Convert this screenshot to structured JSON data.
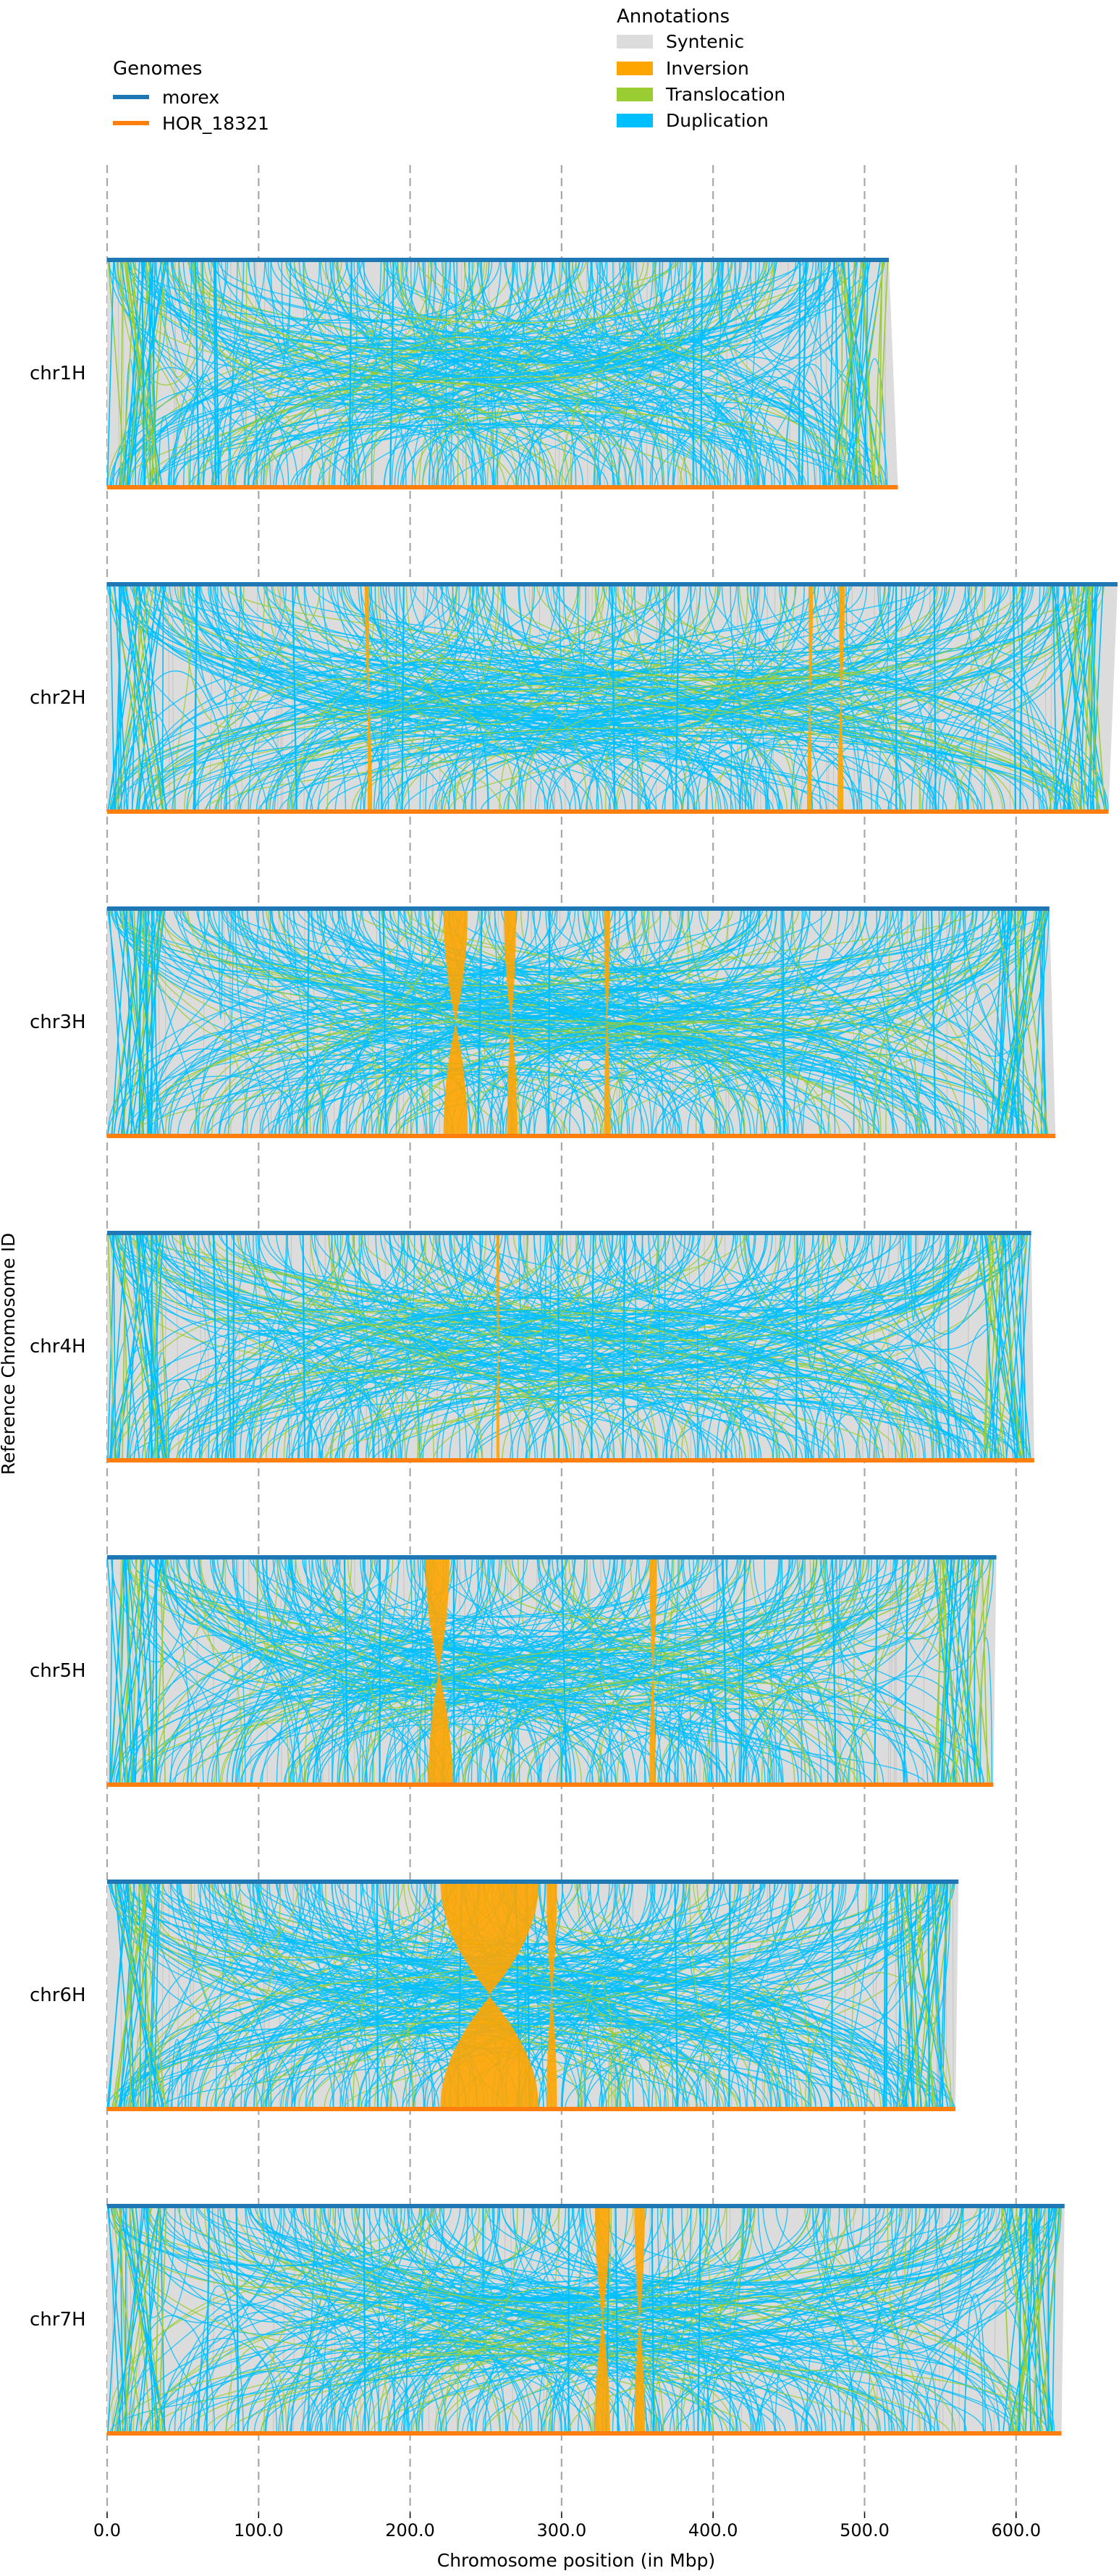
{
  "legend_genomes": {
    "title": "Genomes",
    "items": [
      {
        "label": "morex",
        "color": "#1f77b4"
      },
      {
        "label": "HOR_18321",
        "color": "#ff7f0e"
      }
    ]
  },
  "legend_annotations": {
    "title": "Annotations",
    "items": [
      {
        "label": "Syntenic",
        "color": "#dcdcdc"
      },
      {
        "label": "Inversion",
        "color": "#ffa500"
      },
      {
        "label": "Translocation",
        "color": "#9acd32"
      },
      {
        "label": "Duplication",
        "color": "#00bfff"
      }
    ]
  },
  "chart_data": {
    "type": "synteny",
    "xlabel": "Chromosome position (in Mbp)",
    "ylabel": "Reference Chromosome ID",
    "xlim": [
      0,
      670
    ],
    "xticks": [
      0,
      100,
      200,
      300,
      400,
      500,
      600
    ],
    "xtick_labels": [
      "0.0",
      "100.0",
      "200.0",
      "300.0",
      "400.0",
      "500.0",
      "600.0"
    ],
    "grid": "vertical dashed",
    "chromosomes": [
      {
        "id": "chr1H",
        "morex_length": 516,
        "hor_length": 522,
        "inversions": []
      },
      {
        "id": "chr2H",
        "morex_length": 667,
        "hor_length": 661,
        "inversions": [
          {
            "ref": [
              170,
              173
            ],
            "qry": [
              172,
              175
            ]
          },
          {
            "ref": [
              463,
              466
            ],
            "qry": [
              462,
              465
            ]
          },
          {
            "ref": [
              483,
              487
            ],
            "qry": [
              482,
              486
            ]
          }
        ]
      },
      {
        "id": "chr3H",
        "morex_length": 622,
        "hor_length": 626,
        "inversions": [
          {
            "ref": [
              222,
              238
            ],
            "qry": [
              222,
              238
            ]
          },
          {
            "ref": [
              262,
              270
            ],
            "qry": [
              264,
              271
            ]
          },
          {
            "ref": [
              328,
              332
            ],
            "qry": [
              328,
              332
            ]
          }
        ]
      },
      {
        "id": "chr4H",
        "morex_length": 610,
        "hor_length": 612,
        "inversions": [
          {
            "ref": [
              257,
              259
            ],
            "qry": [
              257,
              259
            ]
          }
        ]
      },
      {
        "id": "chr5H",
        "morex_length": 587,
        "hor_length": 585,
        "inversions": [
          {
            "ref": [
              210,
              226
            ],
            "qry": [
              212,
              228
            ]
          },
          {
            "ref": [
              358,
              363
            ],
            "qry": [
              358,
              362
            ]
          }
        ]
      },
      {
        "id": "chr6H",
        "morex_length": 562,
        "hor_length": 560,
        "inversions": [
          {
            "ref": [
              220,
              285
            ],
            "qry": [
              220,
              285
            ]
          },
          {
            "ref": [
              290,
              297
            ],
            "qry": [
              290,
              297
            ]
          }
        ]
      },
      {
        "id": "chr7H",
        "morex_length": 632,
        "hor_length": 630,
        "inversions": [
          {
            "ref": [
              322,
              332
            ],
            "qry": [
              322,
              332
            ]
          },
          {
            "ref": [
              348,
              355
            ],
            "qry": [
              348,
              355
            ]
          }
        ]
      }
    ]
  }
}
